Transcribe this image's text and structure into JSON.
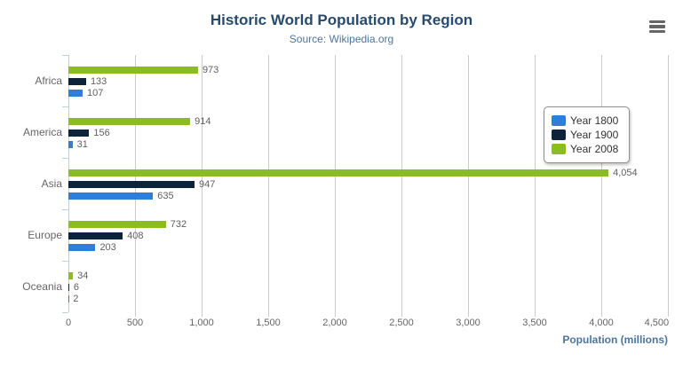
{
  "header": {
    "title": "Historic World Population by Region",
    "subtitle": "Source: Wikipedia.org"
  },
  "icons": {
    "context_menu": "hamburger-menu-icon"
  },
  "colors": {
    "title": "#274b6d",
    "subtitle": "#4d759e",
    "axis_title": "#4d759e",
    "grid": "#cccccc",
    "axis_line": "#c0d0e0",
    "data_label": "#606060",
    "year_1800": "#2f7ed8",
    "year_1900": "#0d233a",
    "year_2008": "#8bbc21"
  },
  "chart_data": {
    "type": "bar",
    "title": "Historic World Population by Region",
    "subtitle": "Source: Wikipedia.org",
    "categories": [
      "Africa",
      "America",
      "Asia",
      "Europe",
      "Oceania"
    ],
    "series": [
      {
        "name": "Year 1800",
        "color": "#2f7ed8",
        "values": [
          107,
          31,
          635,
          203,
          2
        ]
      },
      {
        "name": "Year 1900",
        "color": "#0d233a",
        "values": [
          133,
          156,
          947,
          408,
          6
        ]
      },
      {
        "name": "Year 2008",
        "color": "#8bbc21",
        "values": [
          973,
          914,
          4054,
          732,
          34
        ]
      }
    ],
    "bar_display_order_top_to_bottom": [
      "Year 2008",
      "Year 1900",
      "Year 1800"
    ],
    "xlabel": "Population (millions)",
    "xlim": [
      0,
      4500
    ],
    "x_ticks": [
      0,
      500,
      1000,
      1500,
      2000,
      2500,
      3000,
      3500,
      4000,
      4500
    ],
    "x_tick_labels": [
      "0",
      "500",
      "1,000",
      "1,500",
      "2,000",
      "2,500",
      "3,000",
      "3,500",
      "4,000",
      "4,500"
    ],
    "grid": true,
    "data_labels": true,
    "data_label_values": {
      "Africa": [
        "107",
        "133",
        "973"
      ],
      "America": [
        "31",
        "156",
        "914"
      ],
      "Asia": [
        "635",
        "947",
        "4,054"
      ],
      "Europe": [
        "203",
        "408",
        "732"
      ],
      "Oceania": [
        "2",
        "6",
        "34"
      ]
    },
    "legend_position": "right",
    "legend_entries": [
      "Year 1800",
      "Year 1900",
      "Year 2008"
    ]
  }
}
